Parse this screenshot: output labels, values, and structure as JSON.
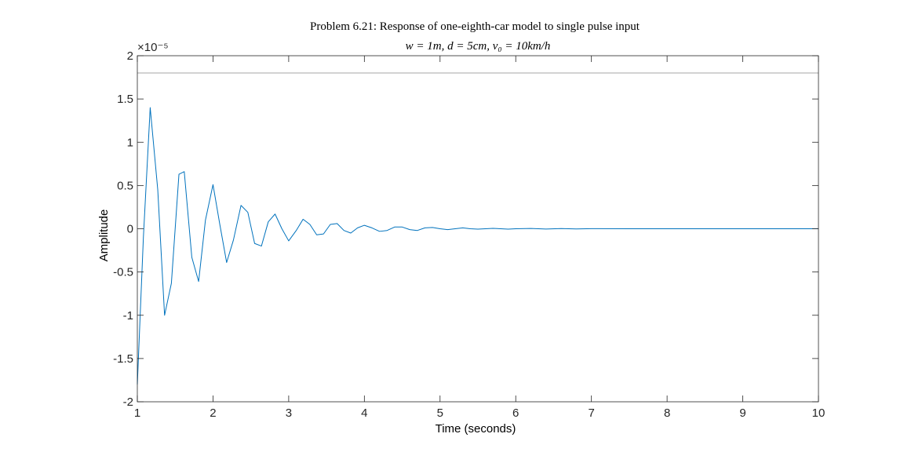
{
  "chart_data": {
    "type": "line",
    "title": "Problem 6.21: Response of one-eighth-car model to single pulse input",
    "subtitle": "w = 1m, d = 5cm, v₀ = 10km/h",
    "xlabel": "Time (seconds)",
    "ylabel": "Amplitude",
    "y_exponent_label": "×10⁻⁵",
    "xlim": [
      1,
      10
    ],
    "ylim": [
      -2,
      2
    ],
    "xticks": [
      "1",
      "2",
      "3",
      "4",
      "5",
      "6",
      "7",
      "8",
      "9",
      "10"
    ],
    "yticks": [
      "-2",
      "-1.5",
      "-1",
      "-0.5",
      "0",
      "0.5",
      "1",
      "1.5",
      "2"
    ],
    "grid": false,
    "reference_line": {
      "y": 1.8,
      "color": "#a6a6a6"
    },
    "series": [
      {
        "color": "#0072bd",
        "x": [
          1.0,
          1.08,
          1.17,
          1.27,
          1.36,
          1.45,
          1.55,
          1.62,
          1.72,
          1.81,
          1.9,
          2.0,
          2.09,
          2.18,
          2.27,
          2.37,
          2.46,
          2.55,
          2.64,
          2.73,
          2.82,
          2.91,
          3.0,
          3.1,
          3.19,
          3.28,
          3.37,
          3.46,
          3.55,
          3.64,
          3.73,
          3.82,
          3.91,
          4.0,
          4.1,
          4.2,
          4.3,
          4.4,
          4.5,
          4.6,
          4.7,
          4.8,
          4.9,
          5.0,
          5.1,
          5.2,
          5.3,
          5.4,
          5.5,
          5.6,
          5.7,
          5.8,
          5.9,
          6.0,
          6.2,
          6.4,
          6.6,
          6.8,
          7.0,
          7.5,
          8.0,
          8.5,
          9.0,
          9.5,
          10.0
        ],
        "y": [
          -1.8,
          -0.1,
          1.4,
          0.45,
          -1.0,
          -0.63,
          0.63,
          0.66,
          -0.33,
          -0.61,
          0.1,
          0.51,
          0.05,
          -0.39,
          -0.13,
          0.27,
          0.19,
          -0.17,
          -0.2,
          0.08,
          0.17,
          0.0,
          -0.14,
          -0.02,
          0.11,
          0.05,
          -0.07,
          -0.06,
          0.05,
          0.06,
          -0.02,
          -0.05,
          0.01,
          0.04,
          0.01,
          -0.03,
          -0.02,
          0.02,
          0.02,
          -0.01,
          -0.02,
          0.01,
          0.015,
          0.0,
          -0.01,
          0.0,
          0.01,
          0.0,
          -0.005,
          0.0,
          0.005,
          0.0,
          -0.005,
          0.0,
          0.003,
          -0.003,
          0.002,
          -0.002,
          0.001,
          0.0,
          0.0,
          0.0,
          0.0,
          0.0,
          0.0
        ]
      }
    ]
  }
}
